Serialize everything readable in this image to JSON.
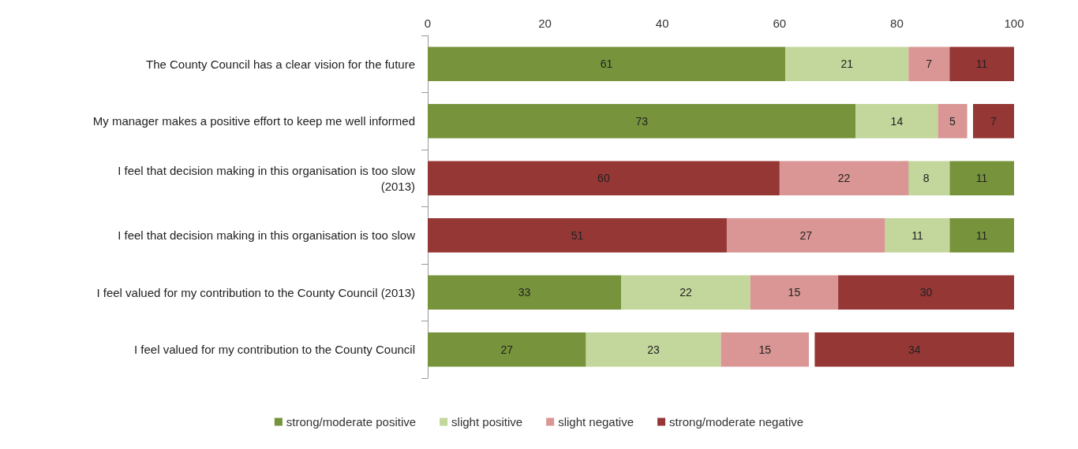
{
  "chart_data": {
    "type": "bar",
    "orientation": "horizontal",
    "categories": [
      "The County Council has a clear vision for the future",
      "My manager makes a positive effort to keep me well informed",
      "I feel that decision making in this organisation is too slow\n(2013)",
      "I feel that decision making in this organisation is too slow",
      "I feel valued for my contribution to the County Council (2013)",
      "I feel valued for my contribution to the County Council"
    ],
    "series": [
      {
        "name": "strong/moderate positive",
        "color": "#77933c",
        "values": [
          61,
          73,
          11,
          11,
          33,
          27
        ],
        "base": [
          0,
          0,
          89,
          89,
          0,
          0
        ]
      },
      {
        "name": "slight positive",
        "color": "#c3d69b",
        "values": [
          21,
          14,
          8,
          11,
          22,
          23
        ],
        "base": [
          61,
          73,
          81,
          78,
          33,
          27
        ]
      },
      {
        "name": "slight negative",
        "color": "#d99694",
        "values": [
          7,
          5,
          22,
          27,
          15,
          15
        ],
        "base": [
          82,
          87,
          60,
          51,
          55,
          50
        ]
      },
      {
        "name": "strong/moderate negative",
        "color": "#953735",
        "values": [
          11,
          7,
          60,
          51,
          30,
          34
        ],
        "base": [
          89,
          93,
          0,
          0,
          70,
          66
        ]
      }
    ],
    "xlim": [
      0,
      100
    ],
    "xticks": [
      0,
      20,
      40,
      60,
      80,
      100
    ],
    "data_labels": true,
    "grid": false,
    "legend": "bottom"
  }
}
